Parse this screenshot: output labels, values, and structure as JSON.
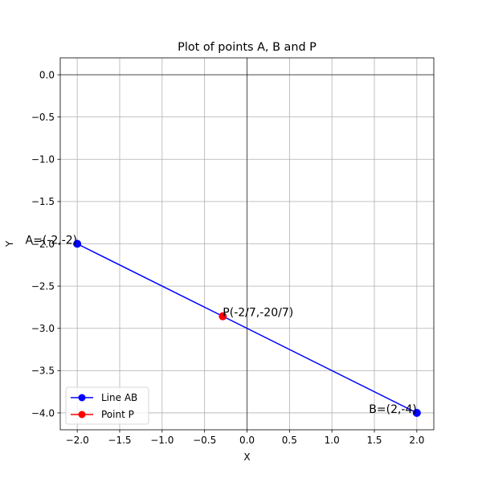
{
  "chart_data": {
    "type": "line",
    "title": "Plot of points A, B and P",
    "xlabel": "X",
    "ylabel": "Y",
    "xlim": [
      -2.2,
      2.2
    ],
    "ylim": [
      -4.2,
      0.2
    ],
    "grid": true,
    "legend_position": "lower-left",
    "x_ticks": [
      -2.0,
      -1.5,
      -1.0,
      -0.5,
      0.0,
      0.5,
      1.0,
      1.5,
      2.0
    ],
    "x_tick_labels": [
      "−2.0",
      "−1.5",
      "−1.0",
      "−0.5",
      "0.0",
      "0.5",
      "1.0",
      "1.5",
      "2.0"
    ],
    "y_ticks": [
      0.0,
      -0.5,
      -1.0,
      -1.5,
      -2.0,
      -2.5,
      -3.0,
      -3.5,
      -4.0
    ],
    "y_tick_labels": [
      "0.0",
      "−0.5",
      "−1.0",
      "−1.5",
      "−2.0",
      "−2.5",
      "−3.0",
      "−3.5",
      "−4.0"
    ],
    "series": [
      {
        "name": "Line AB",
        "color": "#0000ff",
        "marker": "circle",
        "x": [
          -2,
          2
        ],
        "y": [
          -2,
          -4
        ]
      },
      {
        "name": "Point P",
        "color": "#ff0000",
        "marker": "circle",
        "x": [
          -0.2857
        ],
        "y": [
          -2.857
        ]
      }
    ],
    "annotations": [
      {
        "text": "A=(-2,-2)",
        "x": -2,
        "y": -2,
        "anchor": "end",
        "dx": 0,
        "dy": 0
      },
      {
        "text": "B=(2,-4)",
        "x": 2,
        "y": -4,
        "anchor": "end",
        "dx": 0,
        "dy": 0
      },
      {
        "text": "P(-2/7,-20/7)",
        "x": -0.2857,
        "y": -2.857,
        "anchor": "start",
        "dx": 0,
        "dy": 0
      }
    ]
  }
}
